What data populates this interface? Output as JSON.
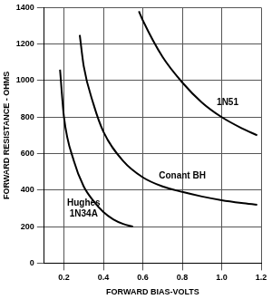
{
  "chart_data": {
    "type": "line",
    "x_label": "FORWARD BIAS-VOLTS",
    "y_label": "FORWARD RESISTANCE - OHMS",
    "series": [
      {
        "color": "#000000",
        "x": [
          0.18,
          0.2,
          0.25,
          0.3,
          0.35,
          0.4,
          0.45,
          0.5,
          0.55
        ],
        "values": [
          1060,
          800,
          560,
          420,
          340,
          280,
          240,
          215,
          200
        ]
      },
      {
        "color": "#000000",
        "x": [
          0.28,
          0.3,
          0.35,
          0.4,
          0.5,
          0.6,
          0.7,
          0.8,
          0.9,
          1.0,
          1.1,
          1.18
        ],
        "values": [
          1250,
          1080,
          870,
          720,
          560,
          470,
          420,
          390,
          365,
          345,
          330,
          320
        ]
      },
      {
        "color": "#000000",
        "x": [
          0.58,
          0.6,
          0.7,
          0.8,
          0.9,
          1.0,
          1.1,
          1.18
        ],
        "values": [
          1380,
          1330,
          1130,
          990,
          880,
          800,
          740,
          700
        ]
      }
    ],
    "annotations": [
      {
        "text": "1N51",
        "x": 1.03,
        "y": 880
      },
      {
        "text": "Conant BH",
        "x": 0.8,
        "y": 475
      },
      {
        "text": "Hughes",
        "x": 0.3,
        "y": 330
      },
      {
        "text": "1N34A",
        "x": 0.3,
        "y": 270
      }
    ],
    "xlim": [
      0.1,
      1.2
    ],
    "xticks": [
      0.2,
      0.4,
      0.6,
      0.8,
      {
        "value": 1,
        "label": "1.0"
      },
      1.2
    ],
    "ylim": [
      0,
      1400
    ],
    "yticks": [
      0,
      200,
      400,
      600,
      800,
      1000,
      1200,
      1400
    ],
    "grid": true
  }
}
